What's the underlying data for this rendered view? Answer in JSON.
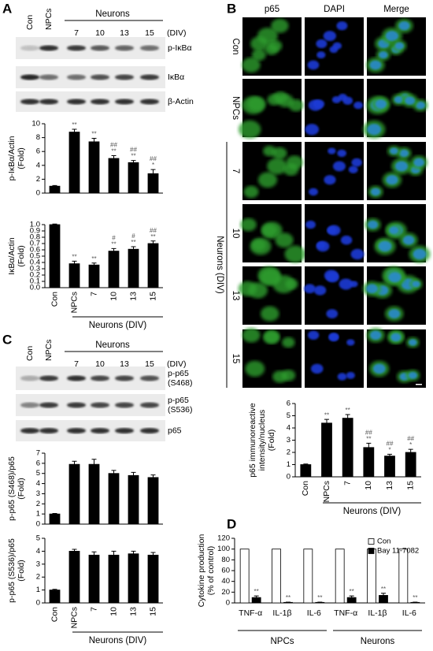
{
  "panel_labels": [
    "A",
    "B",
    "C",
    "D"
  ],
  "blot_A": {
    "lanes": [
      "Con",
      "NPCs",
      "7",
      "10",
      "13",
      "15"
    ],
    "group": "Neurons",
    "unit": "(DIV)",
    "rows": [
      [
        "p-IκBα"
      ],
      [
        "IκBα"
      ],
      [
        "β-Actin"
      ]
    ]
  },
  "blot_C": {
    "lanes": [
      "Con",
      "NPCs",
      "7",
      "10",
      "13",
      "15"
    ],
    "group": "Neurons",
    "unit": "(DIV)",
    "rows": [
      [
        "p-p65",
        "(S468)"
      ],
      [
        "p-p65",
        "(S536)"
      ],
      [
        "p65"
      ]
    ]
  },
  "images_B": {
    "columns": [
      "p65",
      "DAPI",
      "Merge"
    ],
    "rows": [
      "Con",
      "NPCs",
      "7",
      "10",
      "13",
      "15"
    ],
    "group": "Neurons (DIV)"
  },
  "chart_data": [
    {
      "type": "bar",
      "ylabel": [
        "p-IκBα/Actin",
        "(Fold)"
      ],
      "values": [
        1,
        8.8,
        7.4,
        5.0,
        4.4,
        2.8
      ],
      "errors": [
        0.1,
        0.4,
        0.5,
        0.4,
        0.3,
        0.6
      ],
      "color": "#000000",
      "annotations": [
        null,
        [
          "**"
        ],
        [
          "**"
        ],
        [
          "##",
          "**"
        ],
        [
          "##",
          "**"
        ],
        [
          "##",
          "*"
        ]
      ],
      "ylim": [
        0,
        10
      ],
      "yticks": [
        0,
        2,
        4,
        6,
        8,
        10
      ]
    },
    {
      "type": "bar",
      "ylabel": [
        "IκBα/Actin",
        "(Fold)"
      ],
      "categories": [
        "Con",
        "NPCs",
        "7",
        "10",
        "13",
        "15"
      ],
      "xgroup_label": "Neurons (DIV)",
      "values": [
        1.0,
        0.38,
        0.36,
        0.58,
        0.61,
        0.7
      ],
      "errors": [
        0.01,
        0.04,
        0.03,
        0.04,
        0.04,
        0.04
      ],
      "color": "#000000",
      "annotations": [
        null,
        [
          "**"
        ],
        [
          "**"
        ],
        [
          "#",
          "**"
        ],
        [
          "#",
          "**"
        ],
        [
          "##",
          "**"
        ]
      ],
      "ylim": [
        0,
        1
      ],
      "yticks": [
        {
          "value": 0,
          "label": "0.0"
        },
        0.1,
        0.2,
        0.3,
        0.4,
        0.5,
        0.6,
        0.7,
        0.8,
        0.9,
        {
          "value": 1,
          "label": "1.0"
        }
      ]
    },
    {
      "type": "bar",
      "ylabel": [
        "p65 immunoreactive",
        "intensity/nucleus",
        "(Fold)"
      ],
      "categories": [
        "Con",
        "NPCs",
        "7",
        "10",
        "13",
        "15"
      ],
      "xgroup_label": "Neurons (DIV)",
      "values": [
        1,
        4.4,
        4.8,
        2.4,
        1.7,
        2.0
      ],
      "errors": [
        0.05,
        0.3,
        0.3,
        0.35,
        0.15,
        0.25
      ],
      "color": "#000000",
      "annotations": [
        null,
        [
          "**"
        ],
        [
          "**"
        ],
        [
          "##",
          "**"
        ],
        [
          "##",
          "*"
        ],
        [
          "##",
          "*"
        ]
      ],
      "ylim": [
        0,
        6
      ],
      "yticks": [
        0,
        1,
        2,
        3,
        4,
        5,
        6
      ]
    },
    {
      "type": "bar",
      "ylabel": [
        "p-p65 (S468)/p65",
        "(Fold)"
      ],
      "values": [
        1,
        5.9,
        5.9,
        5.0,
        4.8,
        4.6
      ],
      "errors": [
        0.05,
        0.3,
        0.5,
        0.3,
        0.3,
        0.25
      ],
      "color": "#000000",
      "ylim": [
        0,
        7
      ],
      "yticks": [
        0,
        1,
        2,
        3,
        4,
        5,
        6,
        7
      ]
    },
    {
      "type": "bar",
      "ylabel": [
        "p-p65 (S536)/p65",
        "(Fold)"
      ],
      "categories": [
        "Con",
        "NPCs",
        "7",
        "10",
        "13",
        "15"
      ],
      "xgroup_label": "Neurons (DIV)",
      "values": [
        1,
        4.0,
        3.7,
        3.7,
        3.8,
        3.7
      ],
      "errors": [
        0.05,
        0.15,
        0.25,
        0.3,
        0.2,
        0.2
      ],
      "color": "#000000",
      "ylim": [
        0,
        5
      ],
      "yticks": [
        0,
        1,
        2,
        3,
        4,
        5
      ]
    },
    {
      "type": "bar",
      "ylabel": [
        "Cytokine production",
        "(% of control)"
      ],
      "categories": [
        "TNF-α",
        "IL-1β",
        "IL-6",
        "TNF-α",
        "IL-1β",
        "IL-6"
      ],
      "group_labels": [
        "NPCs",
        "Neurons"
      ],
      "series": [
        {
          "name": "Con",
          "color": "#ffffff",
          "values": [
            100,
            100,
            100,
            100,
            100,
            100
          ]
        },
        {
          "name": "Bay 11-7082",
          "color": "#000000",
          "values": [
            10,
            1,
            1,
            10,
            14,
            1
          ],
          "errors": [
            3,
            0.5,
            0.5,
            3,
            4,
            0.5
          ],
          "annotations": [
            [
              "**"
            ],
            [
              "**"
            ],
            [
              "**"
            ],
            [
              "**"
            ],
            [
              "**"
            ],
            [
              "**"
            ]
          ]
        }
      ],
      "legend": "upper right",
      "ylim": [
        0,
        120
      ],
      "yticks": [
        0,
        20,
        40,
        60,
        80,
        100,
        120
      ]
    }
  ]
}
